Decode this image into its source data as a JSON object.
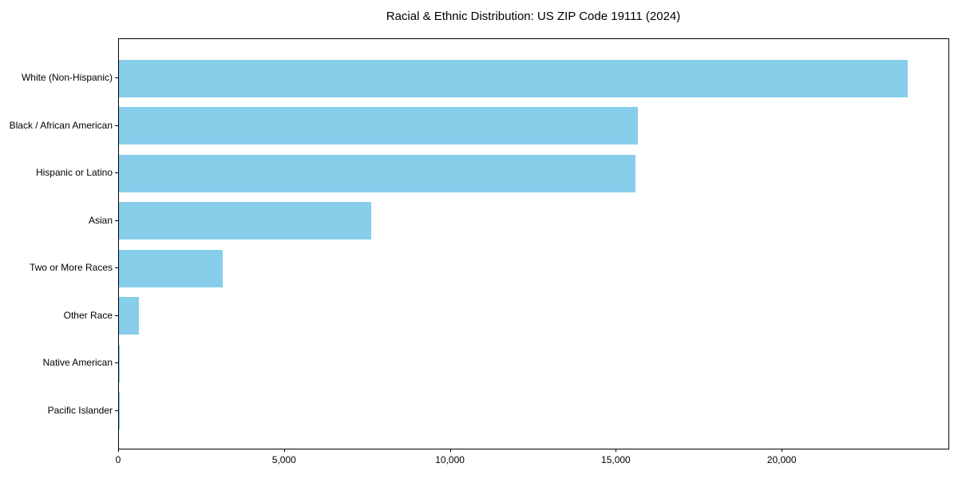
{
  "chart_data": {
    "type": "bar",
    "orientation": "horizontal",
    "title": "Racial & Ethnic Distribution: US ZIP Code 19111 (2024)",
    "categories": [
      "White (Non-Hispanic)",
      "Black / African American",
      "Hispanic or Latino",
      "Asian",
      "Two or More Races",
      "Other Race",
      "Native American",
      "Pacific Islander"
    ],
    "values": [
      23780,
      15650,
      15560,
      7600,
      3120,
      595,
      35,
      12
    ],
    "xlabel": "",
    "ylabel": "",
    "xlim": [
      0,
      25000
    ],
    "x_ticks": [
      0,
      5000,
      10000,
      15000,
      20000
    ],
    "x_tick_labels": [
      "0",
      "5,000",
      "10,000",
      "15,000",
      "20,000"
    ],
    "bar_color": "#87CEEB",
    "grid": false,
    "legend": null,
    "frame": "full-box",
    "background_color": "#ffffff"
  }
}
